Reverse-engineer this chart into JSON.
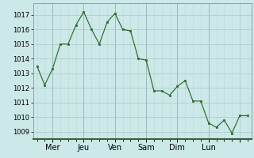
{
  "x_values": [
    0,
    1,
    2,
    3,
    4,
    5,
    6,
    7,
    8,
    9,
    10,
    11,
    12,
    13,
    14,
    15,
    16,
    17,
    18,
    19,
    20,
    21,
    22,
    23,
    24,
    25,
    26,
    27
  ],
  "y_values": [
    1013.5,
    1012.2,
    1013.3,
    1015.0,
    1015.0,
    1016.3,
    1017.2,
    1016.0,
    1015.0,
    1016.5,
    1017.1,
    1016.0,
    1015.9,
    1014.0,
    1013.9,
    1011.8,
    1011.8,
    1011.5,
    1012.1,
    1012.5,
    1011.1,
    1011.1,
    1009.6,
    1009.3,
    1009.8,
    1008.9,
    1010.1,
    1010.1
  ],
  "day_tick_positions": [
    2,
    6,
    10,
    14,
    18,
    22,
    26
  ],
  "day_labels": [
    "Mer",
    "Jeu",
    "Ven",
    "Sam",
    "Dim",
    "Lun",
    ""
  ],
  "vline_positions": [
    2,
    6,
    10,
    14,
    18,
    22,
    26
  ],
  "line_color": "#2d6a2d",
  "marker_color": "#2d6a2d",
  "bg_color": "#cce8e8",
  "grid_color_minor": "#c0d8d8",
  "grid_color_major": "#aac8c8",
  "ylim_min": 1008.5,
  "ylim_max": 1017.8,
  "yticks": [
    1009,
    1010,
    1011,
    1012,
    1013,
    1014,
    1015,
    1016,
    1017
  ],
  "tick_fontsize": 6,
  "label_fontsize": 7,
  "vline_color": "#7a9a9a",
  "spine_color": "#3a6040"
}
